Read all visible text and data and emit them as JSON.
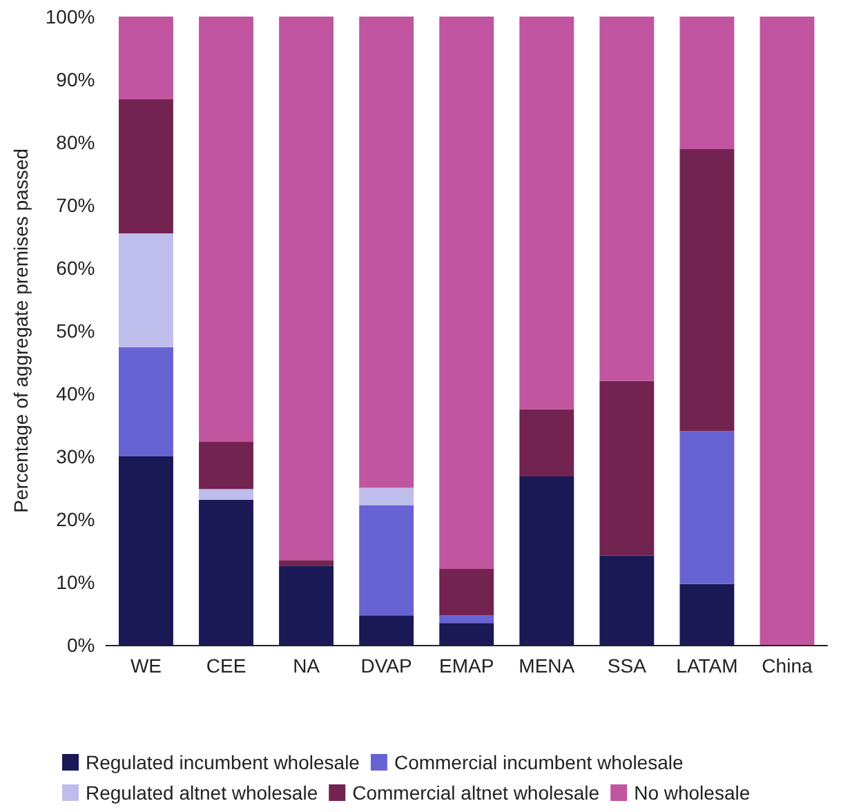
{
  "chart_data": {
    "type": "bar",
    "stacked": true,
    "ylabel": "Percentage of aggregate premises passed",
    "categories": [
      "WE",
      "CEE",
      "NA",
      "DVAP",
      "EMAP",
      "MENA",
      "SSA",
      "LATAM",
      "China"
    ],
    "series": [
      {
        "name": "Regulated incumbent wholesale",
        "color": "#1a1855",
        "values": [
          30,
          23.1,
          12.6,
          4.7,
          3.5,
          26.8,
          14.2,
          9.7,
          0
        ]
      },
      {
        "name": "Commercial incumbent wholesale",
        "color": "#6863d3",
        "values": [
          17.4,
          0,
          0,
          17.5,
          1.2,
          0,
          0,
          24.3,
          0
        ]
      },
      {
        "name": "Regulated altnet wholesale",
        "color": "#bfbdec",
        "values": [
          18.1,
          1.7,
          0,
          2.8,
          0,
          0,
          0,
          0,
          0
        ]
      },
      {
        "name": "Commercial altnet wholesale",
        "color": "#722350",
        "values": [
          21.3,
          7.5,
          0.9,
          0,
          7.4,
          10.7,
          27.8,
          44.9,
          0
        ]
      },
      {
        "name": "No wholesale",
        "color": "#c2559f",
        "values": [
          13.2,
          67.7,
          86.5,
          75,
          87.9,
          62.5,
          58,
          21.1,
          100
        ]
      }
    ],
    "ylim": [
      0,
      100
    ],
    "yticks": [
      {
        "value": 0,
        "label": "0%"
      },
      {
        "value": 10,
        "label": "10%"
      },
      {
        "value": 20,
        "label": "20%"
      },
      {
        "value": 30,
        "label": "30%"
      },
      {
        "value": 40,
        "label": "40%"
      },
      {
        "value": 50,
        "label": "50%"
      },
      {
        "value": 60,
        "label": "60%"
      },
      {
        "value": 70,
        "label": "70%"
      },
      {
        "value": 80,
        "label": "80%"
      },
      {
        "value": 90,
        "label": "90%"
      },
      {
        "value": 100,
        "label": "100%"
      }
    ],
    "grid": false,
    "legend": "bottom"
  }
}
